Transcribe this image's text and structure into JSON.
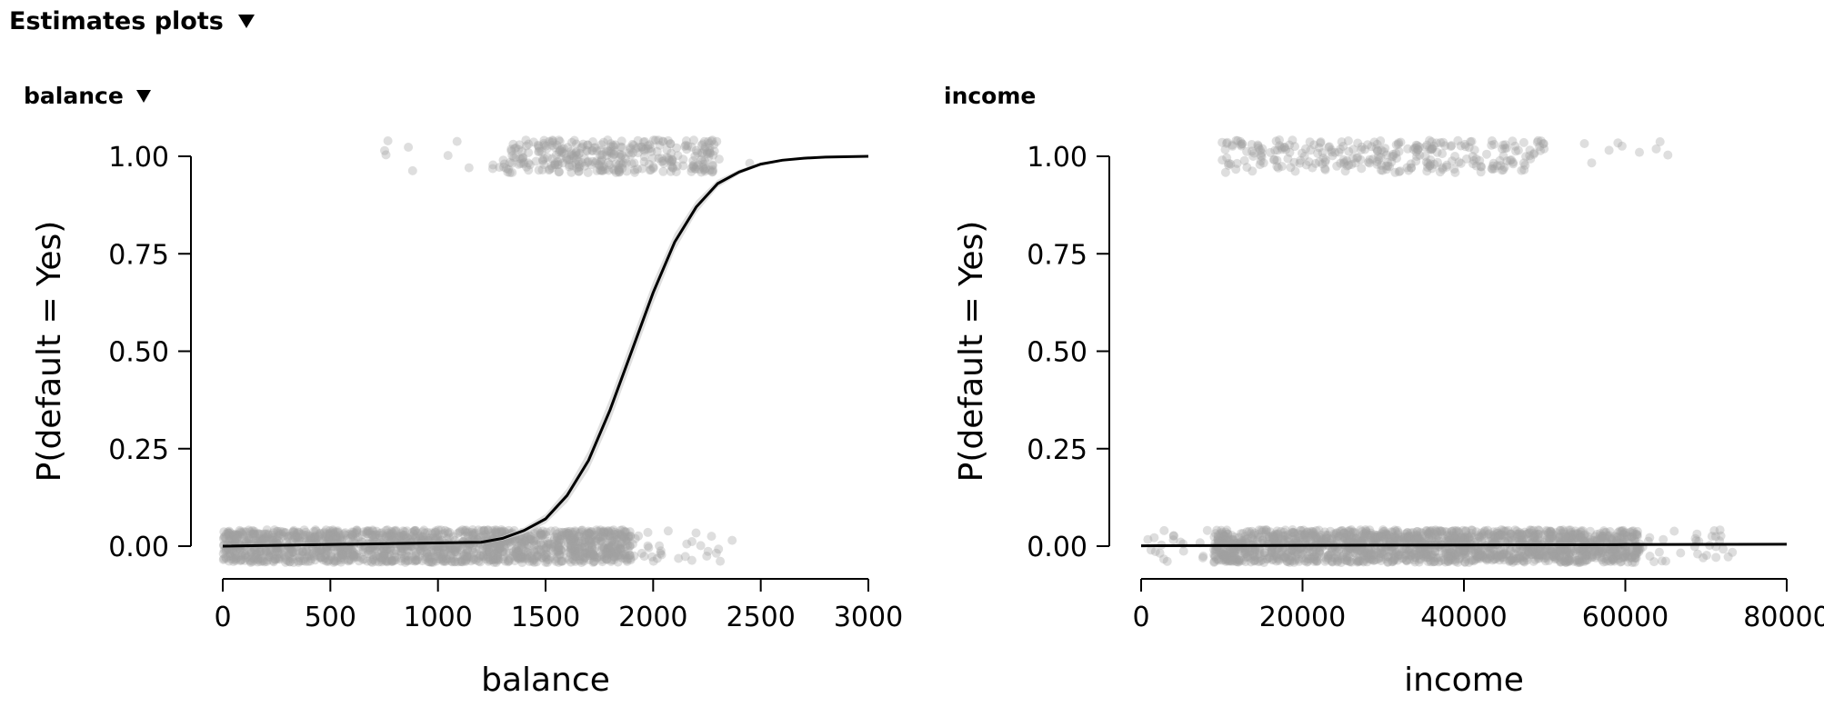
{
  "section": {
    "title": "Estimates plots",
    "toggle_icon": "triangle-down-icon"
  },
  "colors": {
    "points": "#a0a0a0",
    "curve": "#000000",
    "ribbon": "#d8d8d8",
    "axis": "#000000"
  },
  "chart_data": [
    {
      "type": "scatter",
      "panel_title": "balance",
      "collapsible": true,
      "overlay": "logistic fit line with confidence band",
      "xlabel": "balance",
      "ylabel": "P(default = Yes)",
      "xlim": [
        0,
        3000
      ],
      "ylim": [
        0,
        1
      ],
      "xticks": [
        "0",
        "500",
        "1000",
        "1500",
        "2000",
        "2500",
        "3000"
      ],
      "yticks": [
        "0.00",
        "0.25",
        "0.50",
        "0.75",
        "1.00"
      ],
      "points_zero": {
        "y": 0,
        "x_range": [
          0,
          2400
        ],
        "dense_range": [
          0,
          1900
        ]
      },
      "points_one": {
        "y": 1,
        "x_range": [
          650,
          2650
        ],
        "dense_range": [
          1300,
          2300
        ]
      },
      "curve": {
        "x": [
          0,
          1200,
          1300,
          1400,
          1500,
          1600,
          1700,
          1800,
          1900,
          2000,
          2100,
          2200,
          2300,
          2400,
          2500,
          2600,
          2700,
          2800,
          3000
        ],
        "y": [
          0.0,
          0.01,
          0.02,
          0.04,
          0.07,
          0.13,
          0.22,
          0.35,
          0.5,
          0.65,
          0.78,
          0.87,
          0.93,
          0.96,
          0.98,
          0.99,
          0.995,
          0.998,
          1.0
        ],
        "band": [
          0.0,
          0.003,
          0.005,
          0.008,
          0.012,
          0.018,
          0.025,
          0.03,
          0.03,
          0.028,
          0.022,
          0.016,
          0.01,
          0.006,
          0.004,
          0.002,
          0.001,
          0.0,
          0.0
        ]
      }
    },
    {
      "type": "scatter",
      "panel_title": "income",
      "collapsible": false,
      "overlay": "logistic fit line (nearly flat)",
      "xlabel": "income",
      "ylabel": "P(default = Yes)",
      "xlim": [
        0,
        80000
      ],
      "ylim": [
        0,
        1
      ],
      "xticks": [
        "0",
        "20000",
        "40000",
        "60000",
        "80000"
      ],
      "yticks": [
        "0.00",
        "0.25",
        "0.50",
        "0.75",
        "1.00"
      ],
      "points_zero": {
        "y": 0,
        "x_range": [
          700,
          73500
        ],
        "dense_range": [
          9000,
          62000
        ]
      },
      "points_one": {
        "y": 1,
        "x_range": [
          9500,
          66500
        ],
        "dense_range": [
          10000,
          50000
        ]
      },
      "curve": {
        "x": [
          0,
          20000,
          40000,
          60000,
          80000
        ],
        "y": [
          0.001,
          0.002,
          0.003,
          0.004,
          0.005
        ],
        "band": [
          0.003,
          0.002,
          0.001,
          0.002,
          0.003
        ]
      }
    }
  ]
}
